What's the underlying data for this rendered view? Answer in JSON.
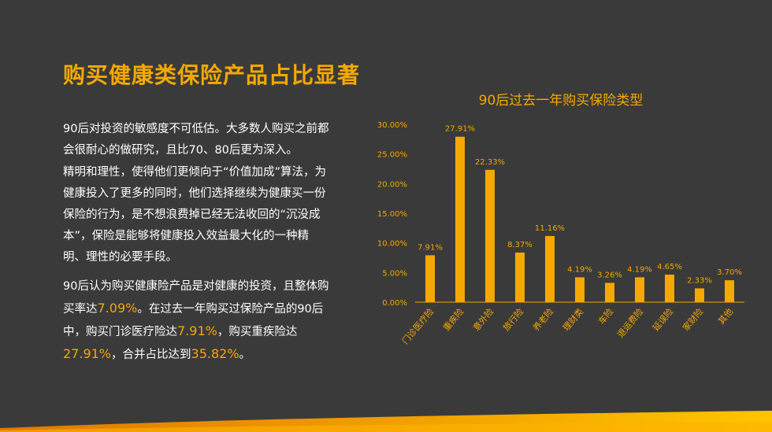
{
  "colors": {
    "background": "#3a3a3a",
    "accent": "#f5a800",
    "text": "#ffffff"
  },
  "heading": "购买健康类保险产品占比显著",
  "paragraphs": {
    "p1": "90后对投资的敏感度不可低估。大多数人购买之前都会很耐心的做研究，且比70、80后更为深入。",
    "p2": "精明和理性，使得他们更倾向于“价值加成”算法，为健康投入了更多的同时，他们选择继续为健康买一份保险的行为，是不想浪费掉已经无法收回的“沉没成本”，保险是能够将健康投入效益最大化的一种精明、理性的必要手段。",
    "p3_a": "90后认为购买健康险产品是对健康的投资，且整体购买率达",
    "p3_h1": "7.09%",
    "p3_b": "。在过去一年购买过保险产品的90后中，购买门诊医疗险达",
    "p3_h2": "7.91%",
    "p3_c": "，购买重疾险达",
    "p3_h3": "27.91%",
    "p3_d": "，合并占比达到",
    "p3_h4": "35.82%",
    "p3_e": "。"
  },
  "chart_data": {
    "type": "bar",
    "title": "90后过去一年购买保险类型",
    "categories": [
      "门诊医疗险",
      "重疾险",
      "意外险",
      "旅行险",
      "养老险",
      "理财类",
      "车险",
      "退运费险",
      "延误险",
      "家财险",
      "其他"
    ],
    "values": [
      7.91,
      27.91,
      22.33,
      8.37,
      11.16,
      4.19,
      3.26,
      4.19,
      4.65,
      2.33,
      3.7
    ],
    "value_labels": [
      "7.91%",
      "27.91%",
      "22.33%",
      "8.37%",
      "11.16%",
      "4.19%",
      "3.26%",
      "4.19%",
      "4.65%",
      "2.33%",
      "3.70%"
    ],
    "yticks": [
      0,
      5,
      10,
      15,
      20,
      25,
      30
    ],
    "ytick_labels": [
      "0.00%",
      "5.00%",
      "10.00%",
      "15.00%",
      "20.00%",
      "25.00%",
      "30.00%"
    ],
    "ylim": [
      0,
      30
    ],
    "xlabel": "",
    "ylabel": "",
    "grid": false,
    "bar_color": "#f5a800"
  }
}
